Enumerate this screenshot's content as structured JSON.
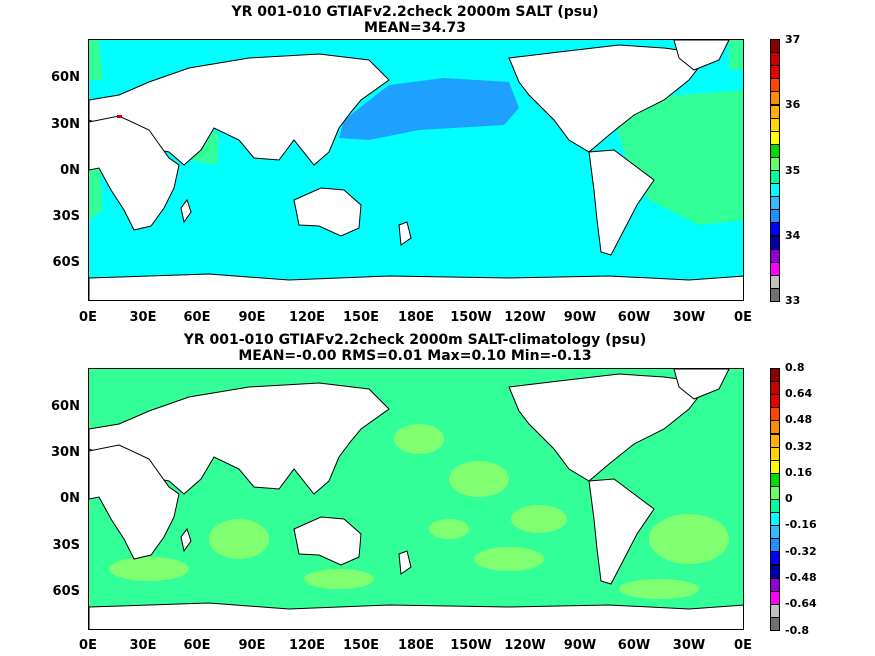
{
  "panels": [
    {
      "title_line1": "YR 001-010 GTIAFv2.2check 2000m SALT (psu)",
      "title_line2": "MEAN=34.73",
      "base_color": "#00ffff",
      "colorbar": {
        "labels": [
          "37",
          "36",
          "35",
          "34",
          "33"
        ],
        "colors": [
          "#8b0000",
          "#c80000",
          "#e60000",
          "#ff4500",
          "#ff8c00",
          "#ffb000",
          "#ffd700",
          "#ffff00",
          "#00dd00",
          "#66ff66",
          "#00ff99",
          "#00ffff",
          "#33bbff",
          "#1e90ff",
          "#0000ff",
          "#0000aa",
          "#9400d3",
          "#ff00ff",
          "#c0c0c0",
          "#707070"
        ]
      }
    },
    {
      "title_line1": "YR 001-010 GTIAFv2.2check 2000m SALT-climatology (psu)",
      "title_line2": "MEAN=-0.00   RMS=0.01   Max=0.10   Min=-0.13",
      "base_color": "#33ff99",
      "colorbar": {
        "labels": [
          "0.8",
          "0.64",
          "0.48",
          "0.32",
          "0.16",
          "0",
          "-0.16",
          "-0.32",
          "-0.48",
          "-0.64",
          "-0.8"
        ],
        "colors": [
          "#8b0000",
          "#c80000",
          "#e60000",
          "#ff4500",
          "#ff8c00",
          "#ffb000",
          "#ffd700",
          "#ffff00",
          "#00dd00",
          "#66ff66",
          "#00ff99",
          "#00ffff",
          "#33bbff",
          "#1e90ff",
          "#0000ff",
          "#0000aa",
          "#9400d3",
          "#ff00ff",
          "#c0c0c0",
          "#707070"
        ]
      }
    }
  ],
  "lat_labels": [
    "60N",
    "30N",
    "0N",
    "30S",
    "60S"
  ],
  "lon_labels": [
    "0E",
    "30E",
    "60E",
    "90E",
    "120E",
    "150E",
    "180E",
    "150W",
    "120W",
    "90W",
    "60W",
    "30W",
    "0E"
  ]
}
